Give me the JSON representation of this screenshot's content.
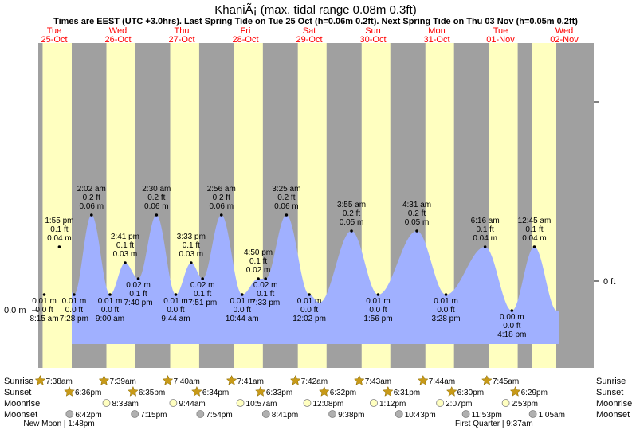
{
  "chart_data": {
    "type": "area",
    "title": "KhaniÃ¡ (max. tidal range 0.08m 0.3ft)",
    "subtitle": "Times are EEST (UTC +3.0hrs). Last Spring Tide on Tue 25 Oct (h=0.06m 0.2ft). Next Spring Tide on Thu 03 Nov (h=0.05m 0.2ft)",
    "left_axis_label": "0.0 m",
    "right_axis_label": "0 ft",
    "ylim": [
      -0.005,
      0.07
    ],
    "xlim": [
      0,
      9.375
    ],
    "days": [
      {
        "name": "Tue",
        "date": "25-Oct"
      },
      {
        "name": "Wed",
        "date": "26-Oct"
      },
      {
        "name": "Thu",
        "date": "27-Oct"
      },
      {
        "name": "Fri",
        "date": "28-Oct"
      },
      {
        "name": "Sat",
        "date": "29-Oct"
      },
      {
        "name": "Sun",
        "date": "30-Oct"
      },
      {
        "name": "Mon",
        "date": "31-Oct"
      },
      {
        "name": "Tue",
        "date": "01-Nov"
      },
      {
        "name": "Wed",
        "date": "02-Nov"
      }
    ],
    "daylight": [
      {
        "day": 0,
        "start": 0.318,
        "end": 0.775
      },
      {
        "day": 1,
        "start": 0.319,
        "end": 0.774
      },
      {
        "day": 2,
        "start": 0.319,
        "end": 0.774
      },
      {
        "day": 3,
        "start": 0.32,
        "end": 0.773
      },
      {
        "day": 4,
        "start": 0.321,
        "end": 0.772
      },
      {
        "day": 5,
        "start": 0.322,
        "end": 0.772
      },
      {
        "day": 6,
        "start": 0.322,
        "end": 0.771
      },
      {
        "day": 7,
        "start": 0.323,
        "end": 0.77
      },
      {
        "day": 8,
        "start": 0.0,
        "end": 0.375
      }
    ],
    "tides": [
      {
        "t": 0.344,
        "h": 0.01,
        "ft": "0.0 ft",
        "m": "0.01 m",
        "time": "8:15 am",
        "type": "low"
      },
      {
        "t": 0.58,
        "h": 0.04,
        "ft": "0.1 ft",
        "m": "0.04 m",
        "time": "1:55 pm",
        "type": "high"
      },
      {
        "t": 0.811,
        "h": 0.01,
        "ft": "0.0 ft",
        "m": "0.01 m",
        "time": "7:28 pm",
        "type": "low"
      },
      {
        "t": 1.085,
        "h": 0.06,
        "ft": "0.2 ft",
        "m": "0.06 m",
        "time": "2:02 am",
        "type": "high"
      },
      {
        "t": 1.375,
        "h": 0.01,
        "ft": "0.0 ft",
        "m": "0.01 m",
        "time": "9:00 am",
        "type": "low"
      },
      {
        "t": 1.612,
        "h": 0.03,
        "ft": "0.1 ft",
        "m": "0.03 m",
        "time": "2:41 pm",
        "type": "high"
      },
      {
        "t": 1.819,
        "h": 0.02,
        "ft": "0.1 ft",
        "m": "0.02 m",
        "time": "7:40 pm",
        "type": "low"
      },
      {
        "t": 2.104,
        "h": 0.06,
        "ft": "0.2 ft",
        "m": "0.06 m",
        "time": "2:30 am",
        "type": "high"
      },
      {
        "t": 2.406,
        "h": 0.01,
        "ft": "0.0 ft",
        "m": "0.01 m",
        "time": "9:44 am",
        "type": "low"
      },
      {
        "t": 2.648,
        "h": 0.03,
        "ft": "0.1 ft",
        "m": "0.03 m",
        "time": "3:33 pm",
        "type": "high"
      },
      {
        "t": 2.827,
        "h": 0.02,
        "ft": "0.1 ft",
        "m": "0.02 m",
        "time": "7:51 pm",
        "type": "low"
      },
      {
        "t": 3.122,
        "h": 0.06,
        "ft": "0.2 ft",
        "m": "0.06 m",
        "time": "2:56 am",
        "type": "high"
      },
      {
        "t": 3.447,
        "h": 0.01,
        "ft": "0.0 ft",
        "m": "0.01 m",
        "time": "10:44 am",
        "type": "low"
      },
      {
        "t": 3.701,
        "h": 0.02,
        "ft": "0.1 ft",
        "m": "0.02 m",
        "time": "4:50 pm",
        "type": "high"
      },
      {
        "t": 3.815,
        "h": 0.02,
        "ft": "0.1 ft",
        "m": "0.02 m",
        "time": "7:33 pm",
        "type": "low"
      },
      {
        "t": 4.142,
        "h": 0.06,
        "ft": "0.2 ft",
        "m": "0.06 m",
        "time": "3:25 am",
        "type": "high"
      },
      {
        "t": 4.501,
        "h": 0.01,
        "ft": "0.0 ft",
        "m": "0.01 m",
        "time": "12:02 pm",
        "type": "low"
      },
      {
        "t": 5.163,
        "h": 0.05,
        "ft": "0.2 ft",
        "m": "0.05 m",
        "time": "3:55 am",
        "type": "high"
      },
      {
        "t": 5.581,
        "h": 0.01,
        "ft": "0.0 ft",
        "m": "0.01 m",
        "time": "1:56 pm",
        "type": "low"
      },
      {
        "t": 6.188,
        "h": 0.05,
        "ft": "0.2 ft",
        "m": "0.05 m",
        "time": "4:31 am",
        "type": "high"
      },
      {
        "t": 6.644,
        "h": 0.01,
        "ft": "0.0 ft",
        "m": "0.01 m",
        "time": "3:28 pm",
        "type": "low"
      },
      {
        "t": 7.258,
        "h": 0.04,
        "ft": "0.1 ft",
        "m": "0.04 m",
        "time": "6:16 am",
        "type": "high"
      },
      {
        "t": 7.679,
        "h": 0.0,
        "ft": "0.0 ft",
        "m": "0.00 m",
        "time": "4:18 pm",
        "type": "low"
      },
      {
        "t": 8.031,
        "h": 0.04,
        "ft": "0.1 ft",
        "m": "0.04 m",
        "time": "12:45 am",
        "type": "high"
      }
    ],
    "unlabeled_tides": [
      {
        "t": 4.66,
        "h": 0.005
      }
    ],
    "sun_moon_labels": [
      "Sunrise",
      "Sunset",
      "Moonrise",
      "Moonset"
    ],
    "sunrise": [
      {
        "t": 0.318,
        "time": "7:38am"
      },
      {
        "t": 1.319,
        "time": "7:39am"
      },
      {
        "t": 2.319,
        "time": "7:40am"
      },
      {
        "t": 3.32,
        "time": "7:41am"
      },
      {
        "t": 4.321,
        "time": "7:42am"
      },
      {
        "t": 5.322,
        "time": "7:43am"
      },
      {
        "t": 6.322,
        "time": "7:44am"
      },
      {
        "t": 7.323,
        "time": "7:45am"
      }
    ],
    "sunset": [
      {
        "t": 0.775,
        "time": "6:36pm"
      },
      {
        "t": 1.774,
        "time": "6:35pm"
      },
      {
        "t": 2.774,
        "time": "6:34pm"
      },
      {
        "t": 3.773,
        "time": "6:33pm"
      },
      {
        "t": 4.772,
        "time": "6:32pm"
      },
      {
        "t": 5.772,
        "time": "6:31pm"
      },
      {
        "t": 6.771,
        "time": "6:30pm"
      },
      {
        "t": 7.77,
        "time": "6:29pm"
      }
    ],
    "moonrise": [
      {
        "t": 1.356,
        "time": "8:33am"
      },
      {
        "t": 2.405,
        "time": "9:44am"
      },
      {
        "t": 3.457,
        "time": "10:57am"
      },
      {
        "t": 4.506,
        "time": "12:08pm"
      },
      {
        "t": 5.55,
        "time": "1:12pm"
      },
      {
        "t": 6.589,
        "time": "2:07pm"
      },
      {
        "t": 7.62,
        "time": "2:53pm"
      }
    ],
    "moonset": [
      {
        "t": 0.779,
        "time": "6:42pm"
      },
      {
        "t": 1.802,
        "time": "7:15pm"
      },
      {
        "t": 2.829,
        "time": "7:54pm"
      },
      {
        "t": 3.86,
        "time": "8:41pm"
      },
      {
        "t": 4.901,
        "time": "9:38pm"
      },
      {
        "t": 5.947,
        "time": "10:43pm"
      },
      {
        "t": 6.995,
        "time": "11:53pm"
      },
      {
        "t": 8.045,
        "time": "1:05am"
      }
    ],
    "moon_phases": [
      {
        "t": 0.575,
        "label": "New Moon | 1:48pm"
      },
      {
        "t": 7.398,
        "label": "First Quarter | 9:37am"
      }
    ],
    "colors": {
      "night": "#a0a0a0",
      "day": "#ffffc0",
      "water": "#a0b0ff",
      "weekday": "#ff0000",
      "sun_icon": "#c89a18",
      "moon_icon_fill": "#ffffc0",
      "moonset_icon_fill": "#b0b0b0"
    }
  }
}
